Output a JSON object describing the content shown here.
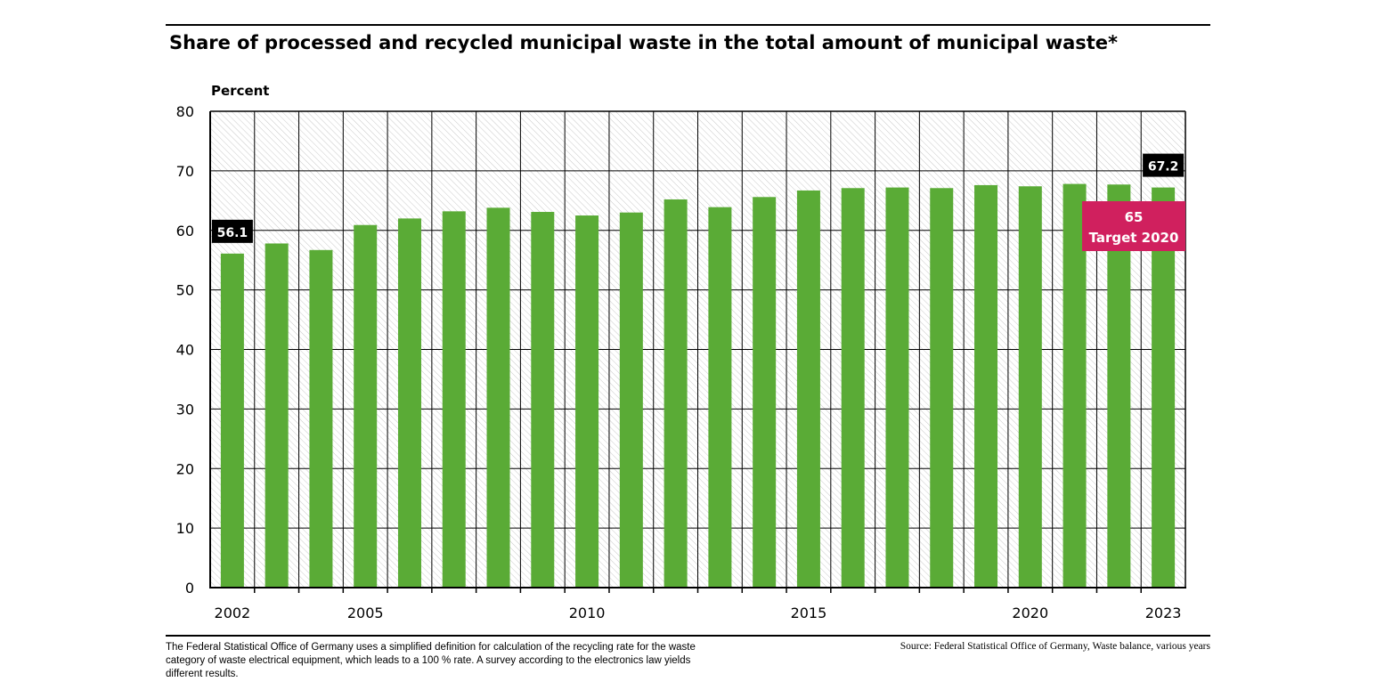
{
  "title": "Share of processed and recycled municipal waste in the total amount of municipal waste*",
  "footnote": "The Federal Statistical Office of Germany uses a simplified definition for calculation of the recycling rate for the waste category of waste electrical equipment, which leads to a 100 % rate. A survey according to the electronics law yields different results.",
  "source": "Source: Federal Statistical Office of Germany, Waste balance, various years",
  "colors": {
    "bar": "#5aab36",
    "target": "#d0205e",
    "label_bg": "#000000"
  },
  "chart_data": {
    "type": "bar",
    "title": "Share of processed and recycled municipal waste in the total amount of municipal waste*",
    "ylabel": "Percent",
    "xlabel": "",
    "ylim": [
      0,
      80
    ],
    "yticks": [
      0,
      10,
      20,
      30,
      40,
      50,
      60,
      70,
      80
    ],
    "xtick_labels": [
      "2002",
      "2005",
      "2010",
      "2015",
      "2020",
      "2023"
    ],
    "categories": [
      "2002",
      "2003",
      "2004",
      "2005",
      "2006",
      "2007",
      "2008",
      "2009",
      "2010",
      "2011",
      "2012",
      "2013",
      "2014",
      "2015",
      "2016",
      "2017",
      "2018",
      "2019",
      "2020",
      "2021",
      "2022",
      "2023"
    ],
    "values": [
      56.1,
      57.8,
      56.7,
      60.9,
      62.0,
      63.2,
      63.8,
      63.1,
      62.5,
      63.0,
      65.2,
      63.9,
      65.6,
      66.7,
      67.1,
      67.2,
      67.1,
      67.6,
      67.4,
      67.8,
      67.7,
      67.2
    ],
    "grid": true,
    "data_labels": [
      {
        "category": "2002",
        "text": "56.1"
      },
      {
        "category": "2023",
        "text": "67.2"
      }
    ],
    "annotation": {
      "value": "65",
      "text": "Target 2020"
    }
  }
}
